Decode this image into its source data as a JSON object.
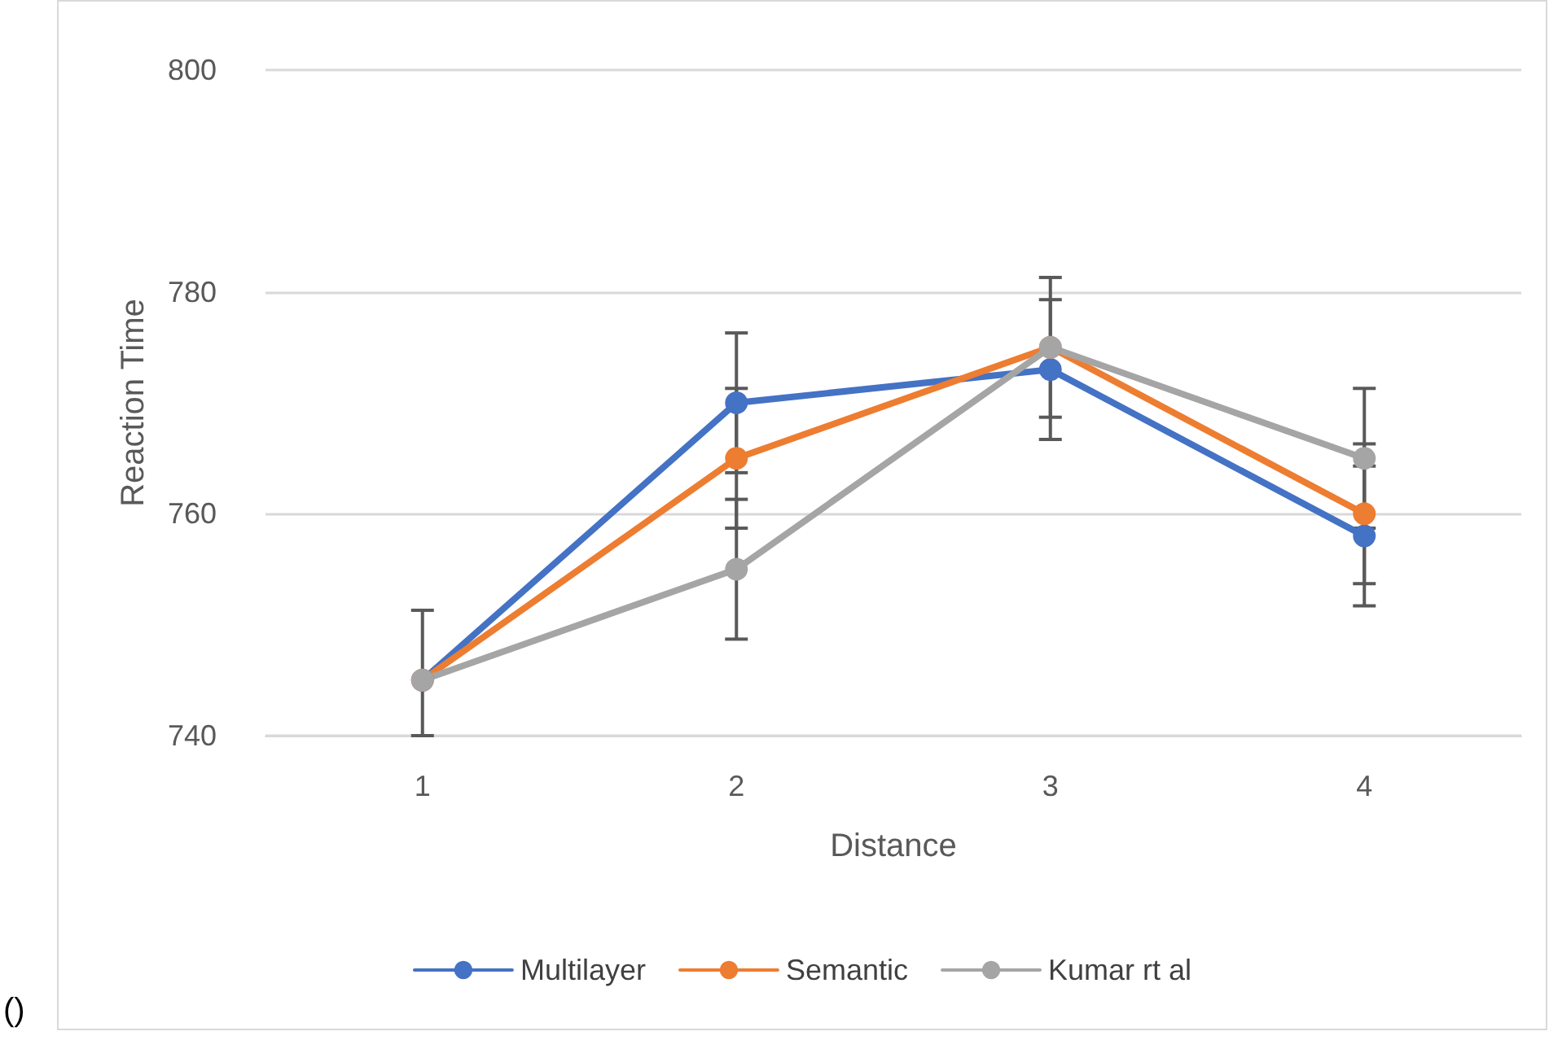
{
  "chart_data": {
    "type": "line",
    "xlabel": "Distance",
    "ylabel": "Reaction Time",
    "categories": [
      "1",
      "2",
      "3",
      "4"
    ],
    "series": [
      {
        "name": "Multilayer",
        "color": "#4472c4",
        "values": [
          745,
          770,
          773,
          758
        ],
        "errors": [
          [
            740,
            751.3
          ],
          6.3,
          6.3,
          6.3
        ]
      },
      {
        "name": "Semantic",
        "color": "#ed7d31",
        "values": [
          745,
          765,
          775,
          760
        ],
        "errors": [
          null,
          6.3,
          6.3,
          6.3
        ]
      },
      {
        "name": "Kumar rt al",
        "color": "#a5a5a5",
        "values": [
          745,
          755,
          775,
          765
        ],
        "errors": [
          null,
          6.3,
          null,
          6.3
        ]
      }
    ],
    "ylim": [
      740,
      800
    ],
    "yticks": [
      740,
      760,
      780,
      800
    ],
    "grid": "y",
    "legend": "bottom",
    "marker": "circle",
    "line_style": "solid",
    "annotations": [
      "()"
    ]
  }
}
